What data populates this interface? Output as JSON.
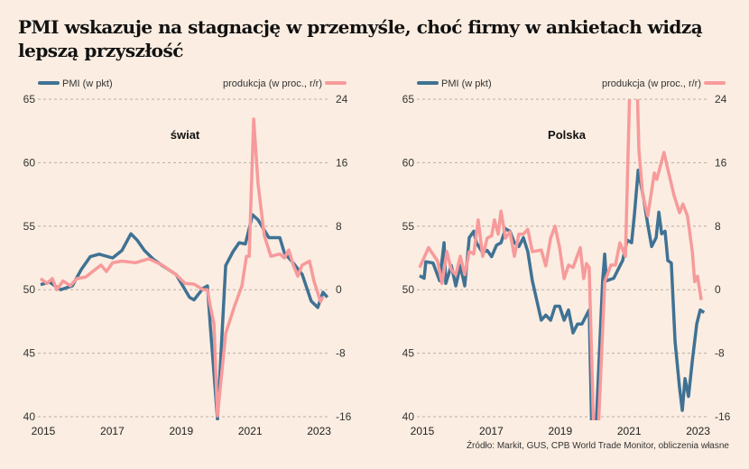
{
  "title": "PMI wskazuje na stagnację w przemyśle, choć firmy w ankietach widzą lepszą przyszłość",
  "source": "Źródło: Markit, GUS, CPB World Trade Monitor, obliczenia własne",
  "colors": {
    "background": "#fbede1",
    "pmi": "#3f7294",
    "production": "#f79a9b",
    "grid": "#b9aea6"
  },
  "chart_data": [
    {
      "type": "line",
      "title": "świat",
      "legend": [
        "PMI (w pkt)",
        "produkcja (w proc., r/r)"
      ],
      "legend_placement": "top",
      "grid": true,
      "xlim": [
        2015,
        2023.35
      ],
      "x_ticks": [
        "2015",
        "2017",
        "2019",
        "2021",
        "2023"
      ],
      "y_left": {
        "label": "PMI (w pkt)",
        "lim": [
          40,
          65
        ],
        "ticks": [
          "65",
          "60",
          "55",
          "50",
          "45",
          "40"
        ]
      },
      "y_right": {
        "label": "produkcja (w proc., r/r)",
        "lim": [
          -16,
          24
        ],
        "ticks": [
          "24",
          "16",
          "8",
          "0",
          "-8",
          "-16"
        ]
      },
      "series": [
        {
          "name": "PMI (w pkt)",
          "axis": "left",
          "x": [
            2015.0,
            2015.26,
            2015.58,
            2015.92,
            2016.18,
            2016.44,
            2016.7,
            2017.09,
            2017.36,
            2017.62,
            2017.8,
            2018.01,
            2018.27,
            2018.53,
            2018.93,
            2019.06,
            2019.32,
            2019.45,
            2019.71,
            2019.84,
            2019.92,
            2020.13,
            2020.37,
            2020.58,
            2020.76,
            2020.94,
            2021.15,
            2021.31,
            2021.62,
            2021.94,
            2022.07,
            2022.33,
            2022.59,
            2022.85,
            2023.04,
            2023.19,
            2023.32
          ],
          "y": [
            50.4,
            50.6,
            50.0,
            50.3,
            51.6,
            52.6,
            52.8,
            52.5,
            53.1,
            54.4,
            53.9,
            53.1,
            52.4,
            51.9,
            51.2,
            50.6,
            49.4,
            49.2,
            50.1,
            50.3,
            47.3,
            39.8,
            51.9,
            53.0,
            53.7,
            53.6,
            55.9,
            55.5,
            54.1,
            54.1,
            52.9,
            52.1,
            51.2,
            49.1,
            48.6,
            49.8,
            49.4
          ]
        },
        {
          "name": "produkcja (w proc., r/r)",
          "axis": "right",
          "x": [
            2015.0,
            2015.18,
            2015.34,
            2015.47,
            2015.65,
            2015.86,
            2016.05,
            2016.31,
            2016.57,
            2016.75,
            2016.91,
            2017.09,
            2017.36,
            2017.75,
            2018.14,
            2018.53,
            2018.93,
            2019.19,
            2019.45,
            2019.71,
            2019.84,
            2019.92,
            2020.03,
            2020.13,
            2020.37,
            2020.63,
            2020.84,
            2020.97,
            2021.05,
            2021.18,
            2021.31,
            2021.49,
            2021.68,
            2021.94,
            2022.07,
            2022.2,
            2022.33,
            2022.46,
            2022.59,
            2022.8,
            2022.93,
            2023.12,
            2023.19
          ],
          "y": [
            1.4,
            0.8,
            1.4,
            0.0,
            1.1,
            0.5,
            1.4,
            1.6,
            2.5,
            3.1,
            2.3,
            3.4,
            3.6,
            3.4,
            3.9,
            3.1,
            1.9,
            0.8,
            0.7,
            0.0,
            0.0,
            -2.0,
            -4.3,
            -15.9,
            -5.5,
            -2.0,
            0.5,
            4.2,
            4.2,
            21.5,
            13.3,
            6.8,
            4.2,
            4.5,
            4.0,
            5.0,
            3.1,
            1.7,
            3.1,
            3.6,
            1.1,
            -1.5,
            -0.9
          ]
        }
      ]
    },
    {
      "type": "line",
      "title": "Polska",
      "legend": [
        "PMI (w pkt)",
        "produkcja (w proc., r/r)"
      ],
      "legend_placement": "top",
      "grid": true,
      "xlim": [
        2015,
        2023.35
      ],
      "x_ticks": [
        "2015",
        "2017",
        "2019",
        "2021",
        "2023"
      ],
      "y_left": {
        "label": "PMI (w pkt)",
        "lim": [
          40,
          65
        ],
        "ticks": [
          "65",
          "60",
          "55",
          "50",
          "45",
          "40"
        ]
      },
      "y_right": {
        "label": "produkcja (w proc., r/r)",
        "lim": [
          -16,
          24
        ],
        "ticks": [
          "24",
          "16",
          "8",
          "0",
          "-8",
          "-16"
        ]
      },
      "series": [
        {
          "name": "PMI (w pkt)",
          "axis": "left",
          "x": [
            2015.0,
            2015.13,
            2015.18,
            2015.39,
            2015.58,
            2015.71,
            2015.76,
            2015.92,
            2016.05,
            2016.18,
            2016.31,
            2016.44,
            2016.57,
            2016.65,
            2016.83,
            2016.96,
            2017.09,
            2017.23,
            2017.36,
            2017.49,
            2017.62,
            2017.75,
            2017.88,
            2018.01,
            2018.14,
            2018.27,
            2018.53,
            2018.66,
            2018.8,
            2018.93,
            2019.06,
            2019.19,
            2019.32,
            2019.45,
            2019.58,
            2019.71,
            2019.84,
            2019.92,
            2020.0,
            2020.1,
            2020.31,
            2020.37,
            2020.42,
            2020.63,
            2020.76,
            2020.89,
            2021.02,
            2021.15,
            2021.23,
            2021.34,
            2021.49,
            2021.62,
            2021.73,
            2021.86,
            2021.94,
            2022.02,
            2022.12,
            2022.2,
            2022.3,
            2022.41,
            2022.54,
            2022.62,
            2022.7,
            2022.8,
            2022.91,
            2023.04,
            2023.14,
            2023.25
          ],
          "y": [
            51.1,
            50.9,
            52.2,
            52.1,
            50.7,
            53.7,
            50.5,
            51.9,
            50.3,
            51.9,
            50.3,
            54.1,
            54.6,
            53.7,
            52.9,
            53.1,
            52.6,
            53.5,
            53.7,
            54.8,
            54.6,
            53.7,
            53.4,
            54.1,
            53.0,
            50.7,
            47.6,
            48.0,
            47.6,
            48.7,
            48.7,
            47.6,
            48.4,
            46.6,
            47.3,
            47.3,
            48.0,
            48.4,
            38.0,
            38.0,
            50.7,
            52.8,
            50.7,
            50.9,
            51.6,
            52.3,
            53.9,
            53.7,
            55.9,
            59.4,
            57.3,
            55.1,
            53.4,
            54.1,
            56.1,
            54.4,
            54.6,
            52.3,
            52.1,
            45.9,
            42.3,
            40.5,
            43.0,
            41.6,
            44.4,
            47.3,
            48.4,
            48.2
          ]
        },
        {
          "name": "produkcja (w proc., r/r)",
          "axis": "right",
          "x": [
            2015.0,
            2015.26,
            2015.52,
            2015.65,
            2015.79,
            2015.92,
            2016.05,
            2016.18,
            2016.31,
            2016.44,
            2016.57,
            2016.7,
            2016.83,
            2016.96,
            2017.09,
            2017.17,
            2017.28,
            2017.36,
            2017.49,
            2017.62,
            2017.75,
            2017.88,
            2018.01,
            2018.14,
            2018.27,
            2018.53,
            2018.66,
            2018.8,
            2018.93,
            2019.06,
            2019.19,
            2019.32,
            2019.45,
            2019.66,
            2019.76,
            2019.84,
            2019.92,
            2020.05,
            2020.18,
            2020.37,
            2020.55,
            2020.68,
            2020.81,
            2020.97,
            2021.1,
            2021.31,
            2021.36,
            2021.47,
            2021.62,
            2021.81,
            2021.88,
            2022.09,
            2022.2,
            2022.38,
            2022.54,
            2022.64,
            2022.77,
            2022.91,
            2022.98,
            2023.06,
            2023.17
          ],
          "y": [
            2.8,
            5.3,
            3.6,
            0.8,
            4.8,
            2.5,
            1.9,
            4.2,
            1.9,
            4.8,
            4.5,
            8.8,
            4.2,
            6.5,
            6.8,
            8.8,
            7.0,
            9.9,
            6.5,
            7.3,
            4.2,
            7.0,
            7.0,
            7.6,
            4.8,
            5.0,
            3.0,
            6.5,
            8.0,
            5.3,
            1.4,
            3.1,
            2.8,
            5.3,
            1.4,
            3.3,
            2.8,
            -18.0,
            -18.0,
            1.0,
            3.1,
            3.1,
            5.9,
            4.2,
            26.0,
            26.0,
            17.6,
            11.9,
            9.3,
            14.7,
            13.9,
            17.3,
            15.2,
            11.9,
            9.7,
            10.8,
            9.3,
            4.8,
            1.0,
            1.7,
            -1.3
          ]
        }
      ]
    }
  ]
}
